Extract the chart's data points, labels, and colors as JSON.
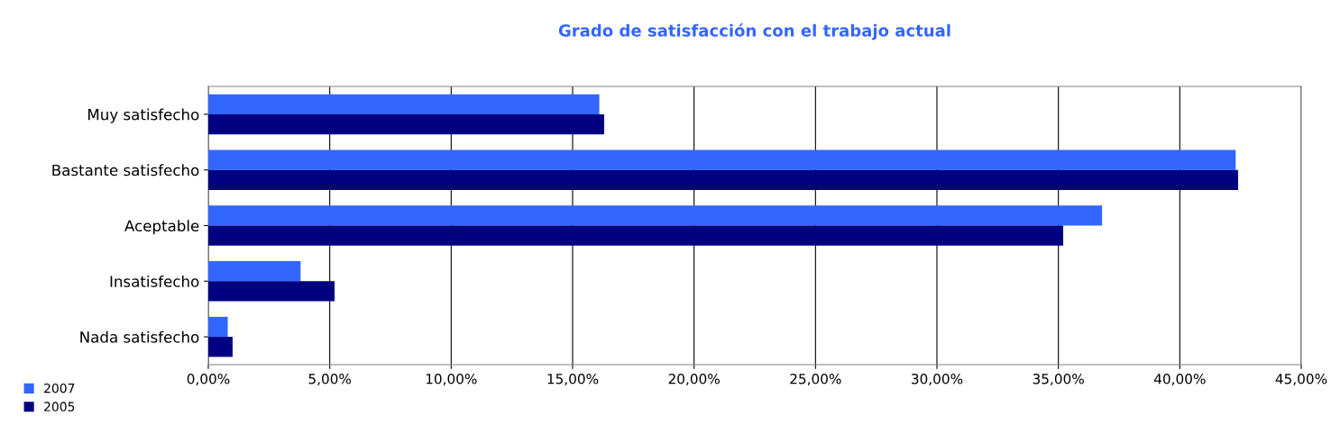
{
  "chart_data": {
    "type": "bar",
    "orientation": "horizontal",
    "title": "Grado de satisfacción con el trabajo actual",
    "categories": [
      "Muy satisfecho",
      "Bastante satisfecho",
      "Aceptable",
      "Insatisfecho",
      "Nada satisfecho"
    ],
    "series": [
      {
        "name": "2007",
        "color": "#3366ff",
        "values": [
          16.1,
          42.3,
          36.8,
          3.8,
          0.8
        ]
      },
      {
        "name": "2005",
        "color": "#000080",
        "values": [
          16.3,
          42.4,
          35.2,
          5.2,
          1.0
        ]
      }
    ],
    "xlim": [
      0,
      45
    ],
    "xticks": [
      {
        "value": 0,
        "label": "0,00%"
      },
      {
        "value": 5,
        "label": "5,00%"
      },
      {
        "value": 10,
        "label": "10,00%"
      },
      {
        "value": 15,
        "label": "15,00%"
      },
      {
        "value": 20,
        "label": "20,00%"
      },
      {
        "value": 25,
        "label": "25,00%"
      },
      {
        "value": 30,
        "label": "30,00%"
      },
      {
        "value": 35,
        "label": "35,00%"
      },
      {
        "value": 40,
        "label": "40,00%"
      },
      {
        "value": 45,
        "label": "45,00%"
      }
    ],
    "grid": "x",
    "legend": "bottom left"
  }
}
